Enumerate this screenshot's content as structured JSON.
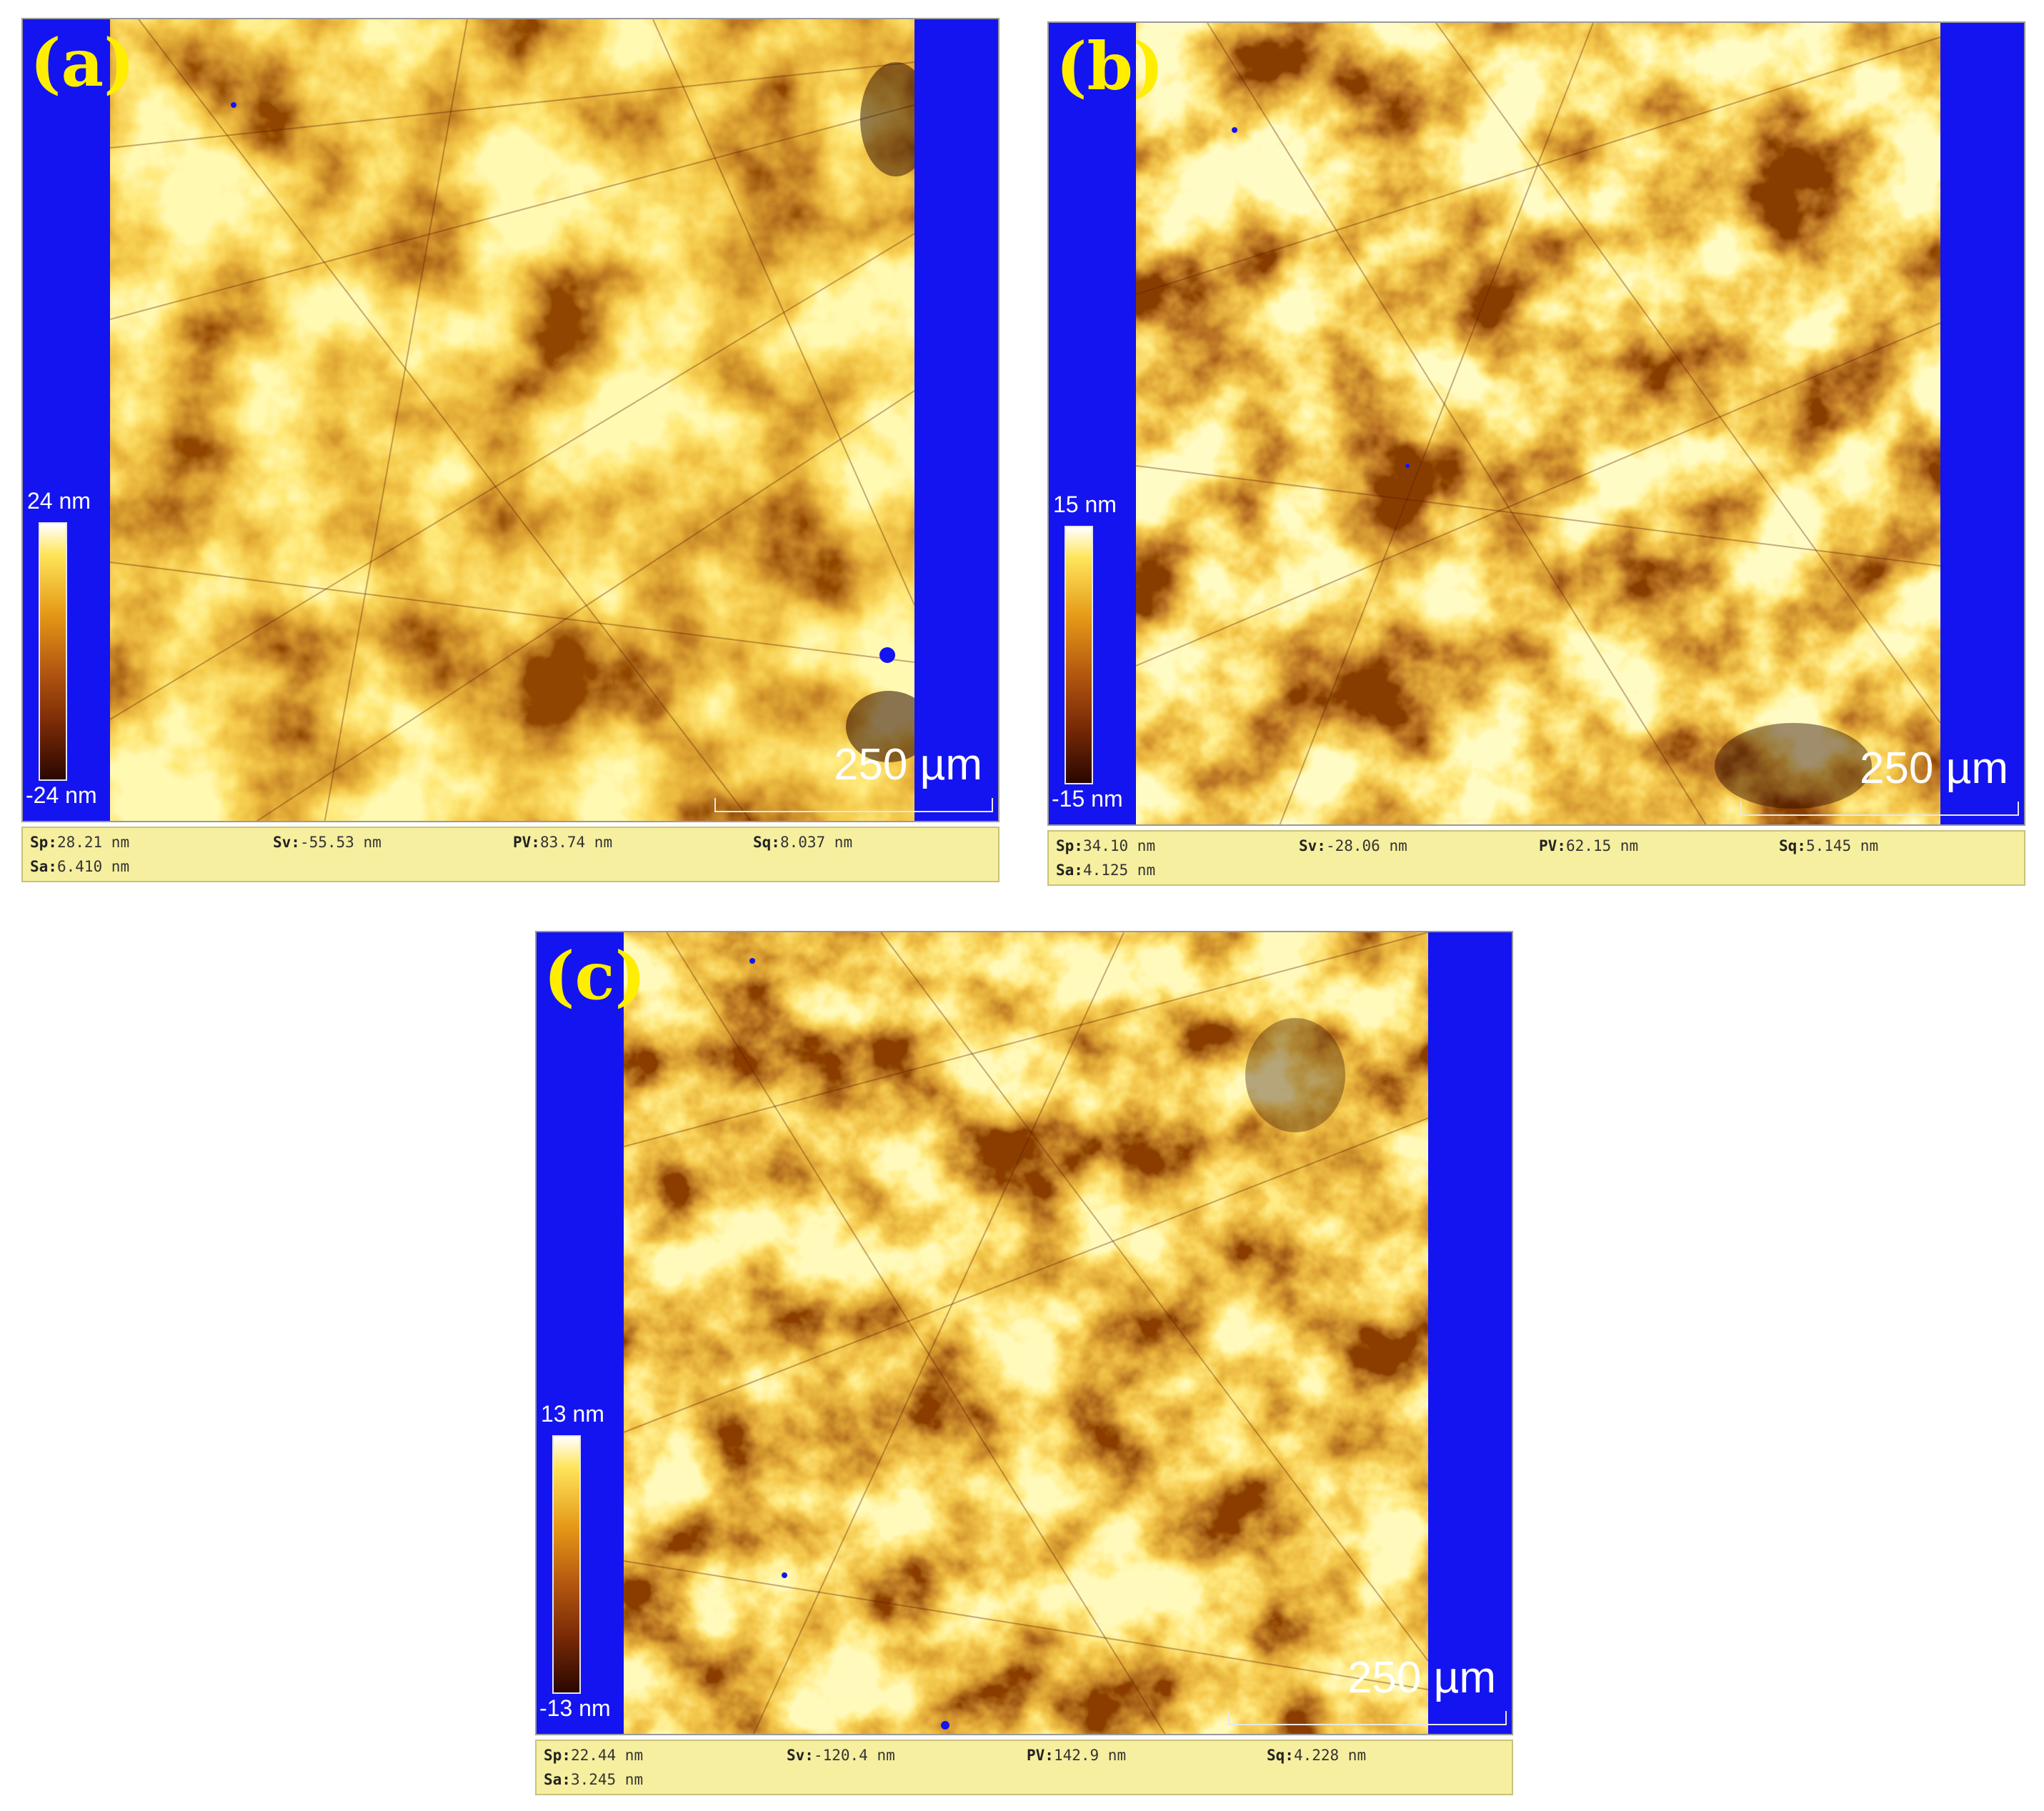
{
  "panels": [
    {
      "label": "(a)",
      "colorbar": {
        "max": "24 nm",
        "min": "-24 nm"
      },
      "scale_bar": "250 µm",
      "stats": [
        {
          "key": "Sp:",
          "value": "28.21 nm"
        },
        {
          "key": "Sv:",
          "value": "-55.53 nm"
        },
        {
          "key": "PV:",
          "value": "83.74 nm"
        },
        {
          "key": "Sq:",
          "value": "8.037 nm"
        },
        {
          "key": "Sa:",
          "value": "6.410 nm"
        }
      ]
    },
    {
      "label": "(b)",
      "colorbar": {
        "max": "15 nm",
        "min": "-15 nm"
      },
      "scale_bar": "250 µm",
      "stats": [
        {
          "key": "Sp:",
          "value": "34.10 nm"
        },
        {
          "key": "Sv:",
          "value": "-28.06 nm"
        },
        {
          "key": "PV:",
          "value": "62.15 nm"
        },
        {
          "key": "Sq:",
          "value": "5.145 nm"
        },
        {
          "key": "Sa:",
          "value": "4.125 nm"
        }
      ]
    },
    {
      "label": "(c)",
      "colorbar": {
        "max": "13 nm",
        "min": "-13 nm"
      },
      "scale_bar": "250 µm",
      "stats": [
        {
          "key": "Sp:",
          "value": "22.44 nm"
        },
        {
          "key": "Sv:",
          "value": "-120.4 nm"
        },
        {
          "key": "PV:",
          "value": "142.9 nm"
        },
        {
          "key": "Sq:",
          "value": "4.228 nm"
        },
        {
          "key": "Sa:",
          "value": "3.245 nm"
        }
      ]
    }
  ],
  "colors": {
    "background_blue": "#1414f0",
    "label_yellow": "#ffee00",
    "stats_bar": "#f6ef9f"
  }
}
